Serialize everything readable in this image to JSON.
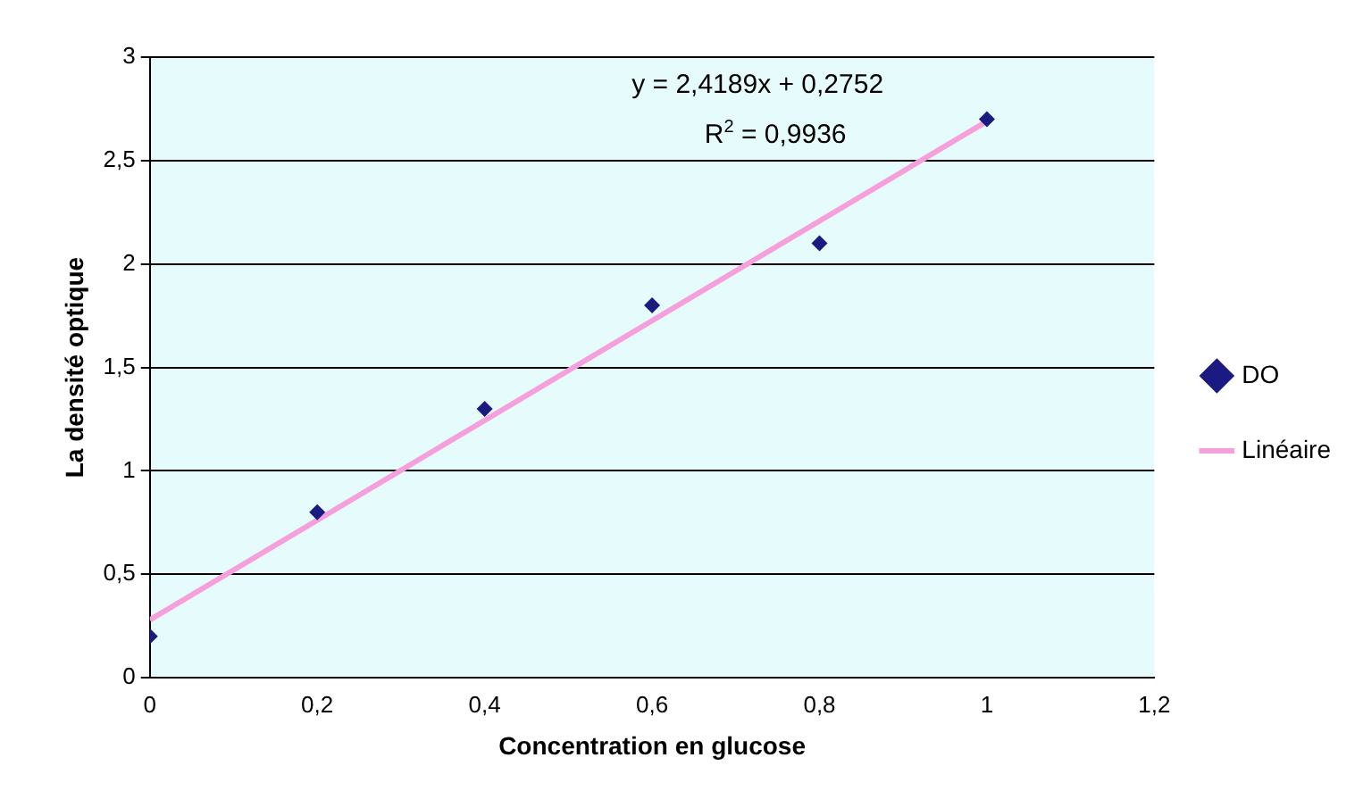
{
  "chart_data": {
    "type": "scatter",
    "xlabel": "Concentration en glucose",
    "ylabel": "La densité optique",
    "series": [
      {
        "name": "DO",
        "marker": "diamond",
        "color": "#1a1a80",
        "x": [
          0,
          0.2,
          0.4,
          0.6,
          0.8,
          1
        ],
        "values": [
          0.2,
          0.8,
          1.3,
          1.8,
          2.1,
          2.7
        ]
      },
      {
        "name": "Linéaire",
        "type": "line",
        "marker": "none",
        "color": "#f5a0dc",
        "x": [
          0,
          1
        ],
        "values": [
          0.28,
          2.69
        ]
      }
    ],
    "annotations": [
      "y = 2,4189x + 0,2752",
      "R$^{2}$ = 0,9936"
    ],
    "xlim": [
      0,
      1.2
    ],
    "xticks": [
      0,
      {
        "value": 0.2,
        "label": "0,2"
      },
      {
        "value": 0.4,
        "label": "0,4"
      },
      {
        "value": 0.6,
        "label": "0,6"
      },
      {
        "value": 0.8,
        "label": "0,8"
      },
      1,
      {
        "value": 1.2,
        "label": "1,2"
      }
    ],
    "ylim": [
      0,
      3
    ],
    "yticks": [
      0,
      {
        "value": 0.5,
        "label": "0,5"
      },
      1,
      {
        "value": 1.5,
        "label": "1,5"
      },
      2,
      {
        "value": 2.5,
        "label": "2,5"
      },
      3
    ],
    "grid": "y",
    "legend": "right",
    "line_style": "solid"
  }
}
